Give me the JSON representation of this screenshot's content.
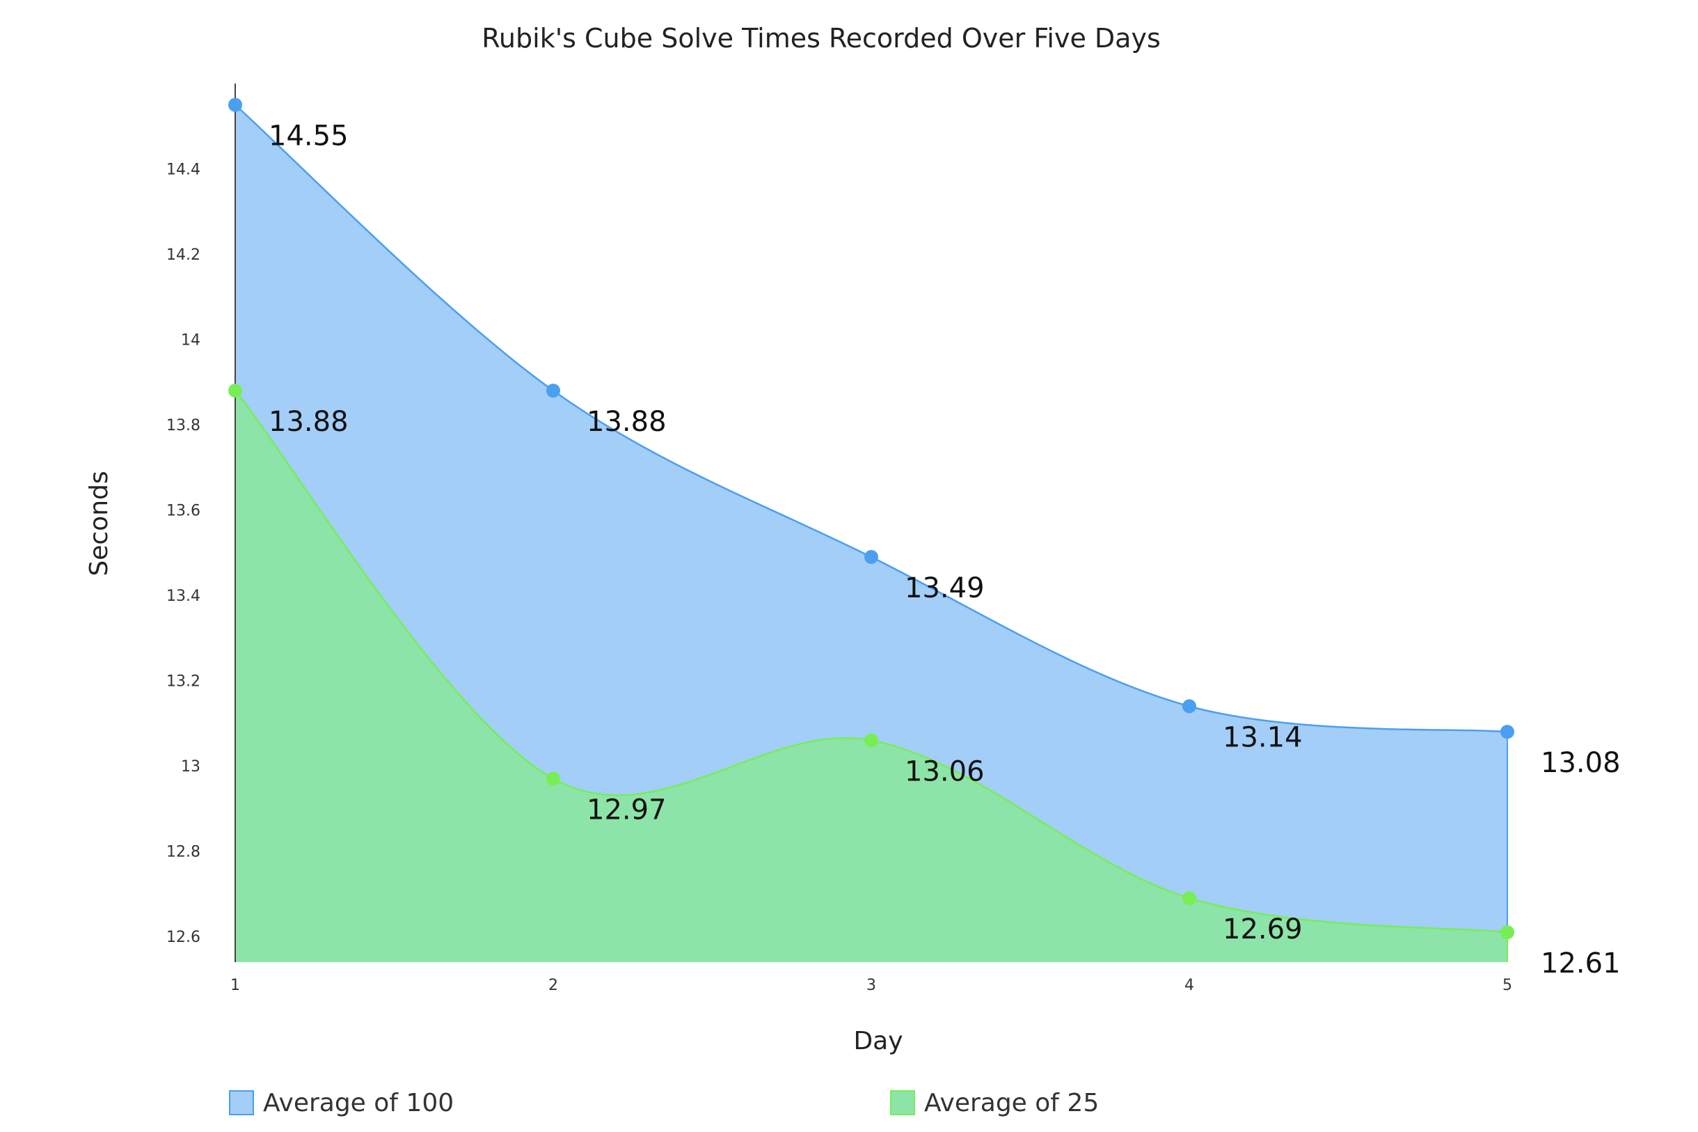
{
  "chart_data": {
    "type": "area",
    "title": "Rubik's Cube Solve Times Recorded Over Five Days",
    "xlabel": "Day",
    "ylabel": "Seconds",
    "x": [
      1,
      2,
      3,
      4,
      5
    ],
    "x_tick_labels": [
      "1",
      "2",
      "3",
      "4",
      "5"
    ],
    "y_ticks": [
      12.6,
      12.8,
      13,
      13.2,
      13.4,
      13.6,
      13.8,
      14,
      14.2,
      14.4
    ],
    "y_tick_labels": [
      "12.6",
      "12.8",
      "13",
      "13.2",
      "13.4",
      "13.6",
      "13.8",
      "14",
      "14.2",
      "14.4"
    ],
    "ylim": [
      12.54,
      14.6
    ],
    "xlim": [
      1,
      5
    ],
    "grid": false,
    "legend_position": "bottom",
    "series": [
      {
        "name": "Average of 100",
        "values": [
          14.55,
          13.88,
          13.49,
          13.14,
          13.08
        ],
        "labels": [
          "14.55",
          "13.88",
          "13.49",
          "13.14",
          "13.08"
        ],
        "color": "#4a9ff0",
        "fill": "#a2cef8"
      },
      {
        "name": "Average of 25",
        "values": [
          13.88,
          12.97,
          13.06,
          12.69,
          12.61
        ],
        "labels": [
          "13.88",
          "12.97",
          "13.06",
          "12.69",
          "12.61"
        ],
        "color": "#77ee55",
        "fill": "#8de4a8"
      }
    ]
  }
}
